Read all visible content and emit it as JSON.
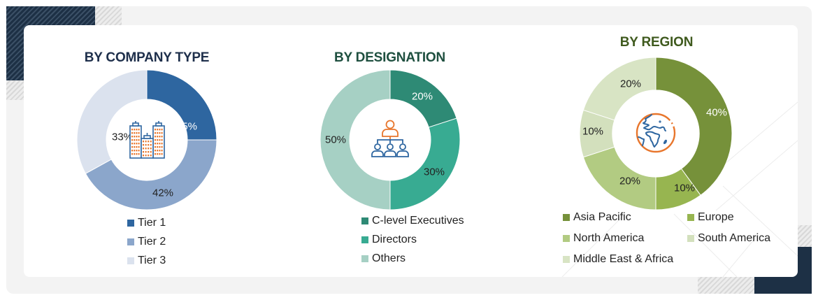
{
  "panels": [
    {
      "title": "BY COMPANY TYPE",
      "title_color": "#1e2f4b",
      "icon": "buildings-icon",
      "labels": [
        "25%",
        "42%",
        "33%"
      ],
      "legend": [
        {
          "label": "Tier 1",
          "color": "#2e66a0"
        },
        {
          "label": "Tier 2",
          "color": "#8ba6cb"
        },
        {
          "label": "Tier 3",
          "color": "#dbe2ee"
        }
      ]
    },
    {
      "title": "BY DESIGNATION",
      "title_color": "#1e4f3f",
      "icon": "org-hierarchy-icon",
      "labels": [
        "20%",
        "30%",
        "50%"
      ],
      "legend": [
        {
          "label": "C-level Executives",
          "color": "#2e8a75"
        },
        {
          "label": "Directors",
          "color": "#38ab92"
        },
        {
          "label": "Others",
          "color": "#a6d0c4"
        }
      ]
    },
    {
      "title": "BY REGION",
      "title_color": "#3f5a1e",
      "icon": "globe-icon",
      "labels": [
        "40%",
        "10%",
        "20%",
        "10%",
        "20%"
      ],
      "legend": [
        {
          "label": "Asia Pacific",
          "color": "#76913a"
        },
        {
          "label": "Europe",
          "color": "#97b550"
        },
        {
          "label": "North America",
          "color": "#b2cb82"
        },
        {
          "label": "South America",
          "color": "#d3e0bd"
        },
        {
          "label": "Middle East & Africa",
          "color": "#d8e4c4"
        }
      ]
    }
  ],
  "chart_data": [
    {
      "type": "pie",
      "title": "BY COMPANY TYPE",
      "categories": [
        "Tier 1",
        "Tier 2",
        "Tier 3"
      ],
      "values": [
        25,
        42,
        33
      ],
      "unit": "%",
      "legend_position": "bottom"
    },
    {
      "type": "pie",
      "title": "BY DESIGNATION",
      "categories": [
        "C-level Executives",
        "Directors",
        "Others"
      ],
      "values": [
        20,
        30,
        50
      ],
      "unit": "%",
      "legend_position": "bottom"
    },
    {
      "type": "pie",
      "title": "BY REGION",
      "categories": [
        "Asia Pacific",
        "Europe",
        "North America",
        "South America",
        "Middle East & Africa"
      ],
      "values": [
        40,
        10,
        20,
        10,
        20
      ],
      "unit": "%",
      "legend_position": "bottom"
    }
  ]
}
